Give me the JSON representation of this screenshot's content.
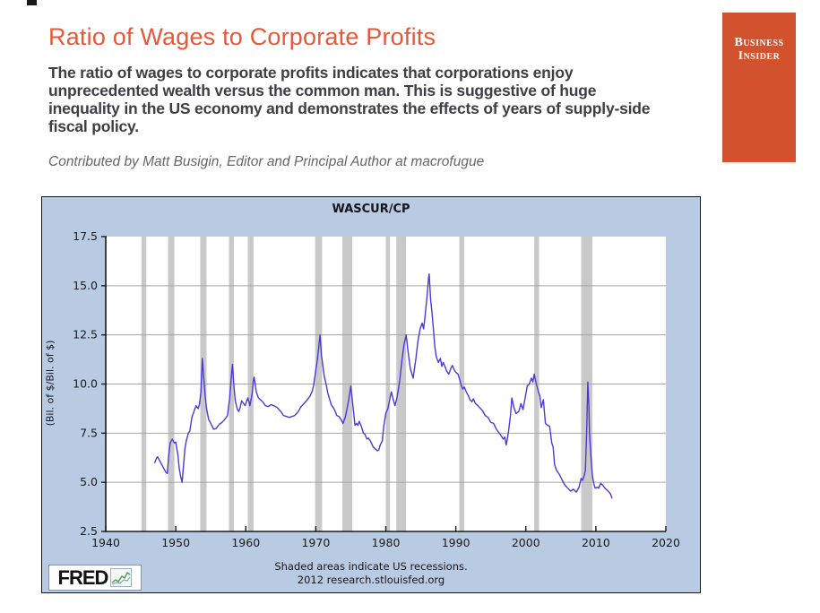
{
  "header": {
    "title": "Ratio of Wages to Corporate Profits",
    "body": "The ratio of wages to corporate profits indicates that corporations enjoy unprecedented wealth versus the common man. This is suggestive of huge inequality in the US economy and demonstrates the effects of years of supply-side fiscal policy.",
    "byline": "Contributed by Matt Busigin, Editor and Principal Author at macrofugue"
  },
  "logo": {
    "line1": "Business",
    "line2": "Insider"
  },
  "colors": {
    "accent": "#E5593B",
    "logo_bg": "#D2522E",
    "chart_bg": "#B9CBE2",
    "plot_bg": "#FFFFFF",
    "recession": "#C9C9C9",
    "grid": "#A6A6A6",
    "axis": "#1A1A1A",
    "line": "#4B39D8"
  },
  "chart_data": {
    "type": "line",
    "title": "WASCUR/CP",
    "ylabel": "(Bil. of $/Bil. of $)",
    "xlabel": "",
    "xlim": [
      1940,
      2020
    ],
    "ylim": [
      2.5,
      17.5
    ],
    "x_ticks": [
      1940,
      1950,
      1960,
      1970,
      1980,
      1990,
      2000,
      2010,
      2020
    ],
    "y_ticks": [
      "2.5",
      "5.0",
      "7.5",
      "10.0",
      "12.5",
      "15.0",
      "17.5"
    ],
    "y_gridlines": [
      5.0,
      7.5,
      10.0,
      12.5,
      15.0
    ],
    "legend": "none",
    "recessions": [
      [
        1945.1,
        1945.8
      ],
      [
        1948.9,
        1949.8
      ],
      [
        1953.5,
        1954.4
      ],
      [
        1957.6,
        1958.3
      ],
      [
        1960.3,
        1961.1
      ],
      [
        1969.9,
        1970.9
      ],
      [
        1973.8,
        1975.2
      ],
      [
        1980.0,
        1980.6
      ],
      [
        1981.5,
        1982.9
      ],
      [
        1990.5,
        1991.2
      ],
      [
        2001.2,
        2001.9
      ],
      [
        2007.9,
        2009.5
      ]
    ],
    "series": [
      {
        "name": "WASCUR/CP",
        "points": [
          [
            1947.0,
            6.0
          ],
          [
            1947.2,
            6.2
          ],
          [
            1947.4,
            6.3
          ],
          [
            1947.7,
            6.1
          ],
          [
            1948.0,
            5.9
          ],
          [
            1948.3,
            5.7
          ],
          [
            1948.6,
            5.5
          ],
          [
            1948.8,
            5.45
          ],
          [
            1949.0,
            6.4
          ],
          [
            1949.2,
            7.0
          ],
          [
            1949.5,
            7.2
          ],
          [
            1949.8,
            7.0
          ],
          [
            1950.0,
            7.05
          ],
          [
            1950.3,
            6.4
          ],
          [
            1950.5,
            5.7
          ],
          [
            1950.7,
            5.3
          ],
          [
            1950.9,
            5.0
          ],
          [
            1951.1,
            5.8
          ],
          [
            1951.3,
            6.7
          ],
          [
            1951.5,
            7.1
          ],
          [
            1951.8,
            7.5
          ],
          [
            1952.0,
            7.6
          ],
          [
            1952.3,
            8.3
          ],
          [
            1952.6,
            8.6
          ],
          [
            1952.9,
            8.9
          ],
          [
            1953.2,
            8.75
          ],
          [
            1953.4,
            9.0
          ],
          [
            1953.6,
            9.6
          ],
          [
            1953.8,
            11.3
          ],
          [
            1954.0,
            10.3
          ],
          [
            1954.2,
            9.4
          ],
          [
            1954.4,
            8.75
          ],
          [
            1954.7,
            8.2
          ],
          [
            1955.0,
            8.0
          ],
          [
            1955.4,
            7.7
          ],
          [
            1955.8,
            7.75
          ],
          [
            1956.2,
            7.95
          ],
          [
            1956.6,
            8.05
          ],
          [
            1957.0,
            8.2
          ],
          [
            1957.4,
            8.4
          ],
          [
            1957.7,
            9.3
          ],
          [
            1958.0,
            10.6
          ],
          [
            1958.1,
            11.0
          ],
          [
            1958.3,
            9.9
          ],
          [
            1958.5,
            9.15
          ],
          [
            1958.8,
            8.7
          ],
          [
            1959.0,
            8.6
          ],
          [
            1959.2,
            8.8
          ],
          [
            1959.4,
            9.15
          ],
          [
            1959.7,
            9.0
          ],
          [
            1959.9,
            8.9
          ],
          [
            1960.1,
            9.1
          ],
          [
            1960.3,
            9.3
          ],
          [
            1960.6,
            8.9
          ],
          [
            1960.9,
            9.5
          ],
          [
            1961.1,
            10.2
          ],
          [
            1961.2,
            10.35
          ],
          [
            1961.5,
            9.6
          ],
          [
            1961.8,
            9.3
          ],
          [
            1962.1,
            9.2
          ],
          [
            1962.4,
            9.1
          ],
          [
            1962.8,
            8.9
          ],
          [
            1963.2,
            8.85
          ],
          [
            1963.6,
            8.95
          ],
          [
            1964.0,
            8.9
          ],
          [
            1964.5,
            8.8
          ],
          [
            1965.0,
            8.6
          ],
          [
            1965.4,
            8.4
          ],
          [
            1965.8,
            8.35
          ],
          [
            1966.2,
            8.3
          ],
          [
            1966.6,
            8.35
          ],
          [
            1967.0,
            8.4
          ],
          [
            1967.5,
            8.6
          ],
          [
            1967.9,
            8.85
          ],
          [
            1968.3,
            9.0
          ],
          [
            1968.8,
            9.2
          ],
          [
            1969.2,
            9.4
          ],
          [
            1969.5,
            9.65
          ],
          [
            1969.7,
            9.95
          ],
          [
            1970.0,
            10.7
          ],
          [
            1970.2,
            11.15
          ],
          [
            1970.4,
            11.8
          ],
          [
            1970.6,
            12.5
          ],
          [
            1970.8,
            11.5
          ],
          [
            1971.0,
            10.95
          ],
          [
            1971.2,
            10.4
          ],
          [
            1971.5,
            9.95
          ],
          [
            1971.7,
            9.55
          ],
          [
            1972.0,
            9.2
          ],
          [
            1972.2,
            8.95
          ],
          [
            1972.5,
            8.8
          ],
          [
            1972.8,
            8.6
          ],
          [
            1973.0,
            8.4
          ],
          [
            1973.3,
            8.35
          ],
          [
            1973.6,
            8.2
          ],
          [
            1973.9,
            8.0
          ],
          [
            1974.2,
            8.3
          ],
          [
            1974.5,
            8.8
          ],
          [
            1974.7,
            9.2
          ],
          [
            1975.0,
            9.9
          ],
          [
            1975.3,
            8.9
          ],
          [
            1975.6,
            7.9
          ],
          [
            1975.8,
            8.0
          ],
          [
            1976.0,
            7.9
          ],
          [
            1976.2,
            8.1
          ],
          [
            1976.5,
            7.85
          ],
          [
            1976.8,
            7.5
          ],
          [
            1977.0,
            7.45
          ],
          [
            1977.3,
            7.2
          ],
          [
            1977.5,
            7.25
          ],
          [
            1977.8,
            7.1
          ],
          [
            1978.2,
            6.8
          ],
          [
            1978.5,
            6.7
          ],
          [
            1978.8,
            6.6
          ],
          [
            1979.0,
            6.65
          ],
          [
            1979.2,
            6.9
          ],
          [
            1979.5,
            7.1
          ],
          [
            1979.7,
            7.85
          ],
          [
            1980.0,
            8.5
          ],
          [
            1980.3,
            8.75
          ],
          [
            1980.6,
            9.3
          ],
          [
            1980.8,
            9.6
          ],
          [
            1981.0,
            9.3
          ],
          [
            1981.3,
            8.9
          ],
          [
            1981.6,
            9.3
          ],
          [
            1982.0,
            10.2
          ],
          [
            1982.3,
            11.2
          ],
          [
            1982.6,
            12.0
          ],
          [
            1982.9,
            12.5
          ],
          [
            1983.2,
            11.6
          ],
          [
            1983.5,
            10.8
          ],
          [
            1983.9,
            10.3
          ],
          [
            1984.3,
            11.3
          ],
          [
            1984.6,
            12.2
          ],
          [
            1984.9,
            12.8
          ],
          [
            1985.2,
            13.1
          ],
          [
            1985.4,
            12.8
          ],
          [
            1985.6,
            13.4
          ],
          [
            1985.9,
            14.5
          ],
          [
            1986.1,
            15.4
          ],
          [
            1986.2,
            15.6
          ],
          [
            1986.4,
            14.3
          ],
          [
            1986.6,
            13.6
          ],
          [
            1986.8,
            12.8
          ],
          [
            1987.0,
            11.9
          ],
          [
            1987.2,
            11.4
          ],
          [
            1987.5,
            11.1
          ],
          [
            1987.8,
            11.3
          ],
          [
            1988.0,
            10.9
          ],
          [
            1988.2,
            11.1
          ],
          [
            1988.5,
            10.85
          ],
          [
            1988.7,
            10.65
          ],
          [
            1989.0,
            10.5
          ],
          [
            1989.3,
            10.8
          ],
          [
            1989.5,
            10.95
          ],
          [
            1989.8,
            10.7
          ],
          [
            1990.0,
            10.6
          ],
          [
            1990.3,
            10.5
          ],
          [
            1990.5,
            10.3
          ],
          [
            1990.8,
            9.9
          ],
          [
            1991.0,
            9.75
          ],
          [
            1991.2,
            9.85
          ],
          [
            1991.5,
            9.6
          ],
          [
            1991.8,
            9.4
          ],
          [
            1992.0,
            9.2
          ],
          [
            1992.3,
            9.1
          ],
          [
            1992.5,
            9.25
          ],
          [
            1992.8,
            9.0
          ],
          [
            1993.0,
            8.95
          ],
          [
            1993.4,
            8.8
          ],
          [
            1993.8,
            8.65
          ],
          [
            1994.2,
            8.4
          ],
          [
            1994.6,
            8.3
          ],
          [
            1995.0,
            8.05
          ],
          [
            1995.4,
            8.0
          ],
          [
            1995.8,
            7.7
          ],
          [
            1996.2,
            7.5
          ],
          [
            1996.5,
            7.35
          ],
          [
            1996.8,
            7.2
          ],
          [
            1997.0,
            7.3
          ],
          [
            1997.2,
            6.9
          ],
          [
            1997.5,
            7.5
          ],
          [
            1997.8,
            8.4
          ],
          [
            1998.0,
            9.3
          ],
          [
            1998.3,
            8.8
          ],
          [
            1998.6,
            8.5
          ],
          [
            1999.0,
            8.6
          ],
          [
            1999.3,
            9.0
          ],
          [
            1999.6,
            8.7
          ],
          [
            2000.0,
            9.5
          ],
          [
            2000.2,
            9.9
          ],
          [
            2000.5,
            10.0
          ],
          [
            2000.8,
            10.3
          ],
          [
            2001.0,
            10.1
          ],
          [
            2001.2,
            10.5
          ],
          [
            2001.5,
            10.0
          ],
          [
            2001.8,
            9.6
          ],
          [
            2002.0,
            9.4
          ],
          [
            2002.2,
            8.8
          ],
          [
            2002.5,
            9.2
          ],
          [
            2002.8,
            8.0
          ],
          [
            2003.1,
            7.9
          ],
          [
            2003.4,
            7.85
          ],
          [
            2003.7,
            7.0
          ],
          [
            2003.9,
            6.8
          ],
          [
            2004.1,
            5.9
          ],
          [
            2004.4,
            5.6
          ],
          [
            2004.8,
            5.4
          ],
          [
            2005.2,
            5.1
          ],
          [
            2005.6,
            4.85
          ],
          [
            2006.0,
            4.7
          ],
          [
            2006.4,
            4.55
          ],
          [
            2006.8,
            4.65
          ],
          [
            2007.2,
            4.5
          ],
          [
            2007.6,
            4.75
          ],
          [
            2007.9,
            5.2
          ],
          [
            2008.1,
            5.1
          ],
          [
            2008.3,
            5.3
          ],
          [
            2008.5,
            5.6
          ],
          [
            2008.7,
            7.7
          ],
          [
            2008.85,
            10.1
          ],
          [
            2009.0,
            8.9
          ],
          [
            2009.1,
            7.5
          ],
          [
            2009.3,
            6.3
          ],
          [
            2009.5,
            5.35
          ],
          [
            2009.7,
            4.95
          ],
          [
            2009.9,
            4.7
          ],
          [
            2010.2,
            4.75
          ],
          [
            2010.4,
            4.7
          ],
          [
            2010.7,
            4.95
          ],
          [
            2011.0,
            4.85
          ],
          [
            2011.3,
            4.7
          ],
          [
            2011.6,
            4.6
          ],
          [
            2011.9,
            4.5
          ],
          [
            2012.1,
            4.4
          ],
          [
            2012.3,
            4.2
          ]
        ]
      }
    ],
    "footnote1": "Shaded areas indicate US recessions.",
    "footnote2": "2012 research.stlouisfed.org",
    "source_label": "FRED"
  }
}
